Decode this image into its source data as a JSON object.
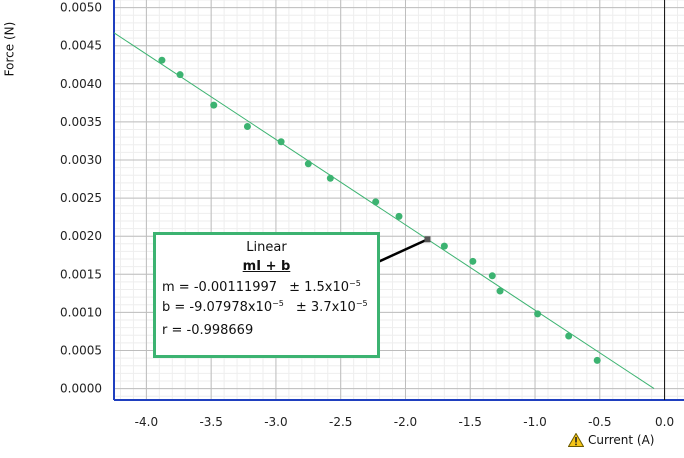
{
  "chart_data": {
    "type": "scatter",
    "xlabel": "Current (A)",
    "ylabel": "Force (N)",
    "xlim": [
      -4.25,
      0.15
    ],
    "ylim": [
      -0.00015,
      0.0051
    ],
    "x_ticks": [
      "-4.0",
      "-3.5",
      "-3.0",
      "-2.5",
      "-2.0",
      "-1.5",
      "-1.0",
      "-0.5",
      "0.0"
    ],
    "y_ticks": [
      "0.0000",
      "0.0005",
      "0.0010",
      "0.0015",
      "0.0020",
      "0.0025",
      "0.0030",
      "0.0035",
      "0.0040",
      "0.0045",
      "0.0050"
    ],
    "grid": true,
    "series": [
      {
        "x": [
          -3.88,
          -3.74,
          -3.48,
          -3.22,
          -2.96,
          -2.75,
          -2.58,
          -2.23,
          -2.05,
          -1.7,
          -1.48,
          -1.33,
          -1.27,
          -0.98,
          -0.74,
          -0.52
        ],
        "y": [
          0.00431,
          0.00412,
          0.00372,
          0.00344,
          0.00324,
          0.00295,
          0.00276,
          0.00245,
          0.00226,
          0.00187,
          0.00167,
          0.00148,
          0.00128,
          0.00098,
          0.00069,
          0.00037
        ]
      }
    ],
    "fit": {
      "kind": "Linear",
      "equation": "mI + b",
      "m": -0.00111997,
      "b": -9.07978e-05
    },
    "fit_color": "#3cb371",
    "point_color": "#3cb371"
  },
  "fit_box": {
    "title": "Linear",
    "equation": "mI + b",
    "m_label": "m = -0.00111997",
    "m_unc": "± 1.5x10",
    "m_exp": "−5",
    "b_label": "b  = -9.07978x10",
    "b_exp": "−5",
    "b_unc": "± 3.7x10",
    "b_unc_exp": "−5",
    "r_label": "r = -0.998669"
  },
  "warning_icon": "warning-icon"
}
